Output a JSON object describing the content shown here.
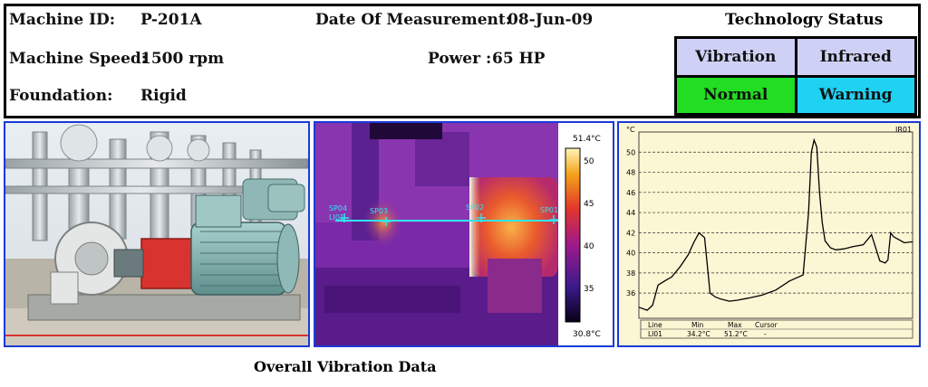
{
  "header": {
    "machine_id_label": "Machine  ID:",
    "machine_id_value": "P-201A",
    "date_label": "Date Of Measurement:",
    "date_value": "08-Jun-09",
    "speed_label": "Machine Speed:",
    "speed_value": "1500  rpm",
    "power_label": "Power :",
    "power_value": "65  HP",
    "foundation_label": "Foundation:",
    "foundation_value": "Rigid"
  },
  "technology_status": {
    "title": "Technology Status",
    "columns": [
      "Vibration",
      "Infrared"
    ],
    "values": [
      "Normal",
      "Warning"
    ],
    "colors": {
      "header": "#cfd0f5",
      "normal": "#22dd22",
      "warning": "#1fd2f2"
    }
  },
  "thermal": {
    "scale_max": "51.4°C",
    "scale_min": "30.8°C",
    "scale_ticks": [
      "50",
      "45",
      "40",
      "35"
    ],
    "spots": [
      "SP04",
      "SP03",
      "SP02",
      "SP01"
    ],
    "line_label": "LI01"
  },
  "chart_data": {
    "type": "line",
    "title": "",
    "corner_label": "IR01",
    "ylabel": "°C",
    "ylim": [
      33.5,
      52
    ],
    "yticks": [
      36,
      38,
      40,
      42,
      44,
      46,
      48,
      50
    ],
    "grid": true,
    "series": [
      {
        "name": "LI01",
        "x": [
          0,
          3,
          5,
          7,
          10,
          12,
          15,
          18,
          20,
          22,
          24,
          26,
          28,
          30,
          33,
          36,
          40,
          45,
          50,
          55,
          60,
          62,
          63,
          64,
          65,
          66,
          67,
          68,
          70,
          72,
          75,
          78,
          82,
          85,
          88,
          90,
          91,
          92,
          93,
          95,
          97,
          100
        ],
        "y": [
          34.6,
          34.3,
          34.8,
          36.8,
          37.3,
          37.6,
          38.6,
          39.8,
          41.0,
          42.0,
          41.5,
          36.0,
          35.6,
          35.4,
          35.2,
          35.3,
          35.5,
          35.8,
          36.3,
          37.2,
          37.8,
          44.0,
          50.0,
          51.2,
          50.5,
          46.0,
          43.0,
          41.2,
          40.5,
          40.3,
          40.4,
          40.6,
          40.8,
          41.8,
          39.2,
          39.0,
          39.3,
          42.0,
          41.6,
          41.3,
          41.0,
          41.1
        ]
      }
    ],
    "table": {
      "headers": [
        "Line",
        "Min",
        "Max",
        "Cursor"
      ],
      "row": [
        "LI01",
        "34.2°C",
        "51.2°C",
        "-"
      ]
    }
  },
  "caption": "Overall Vibration Data"
}
